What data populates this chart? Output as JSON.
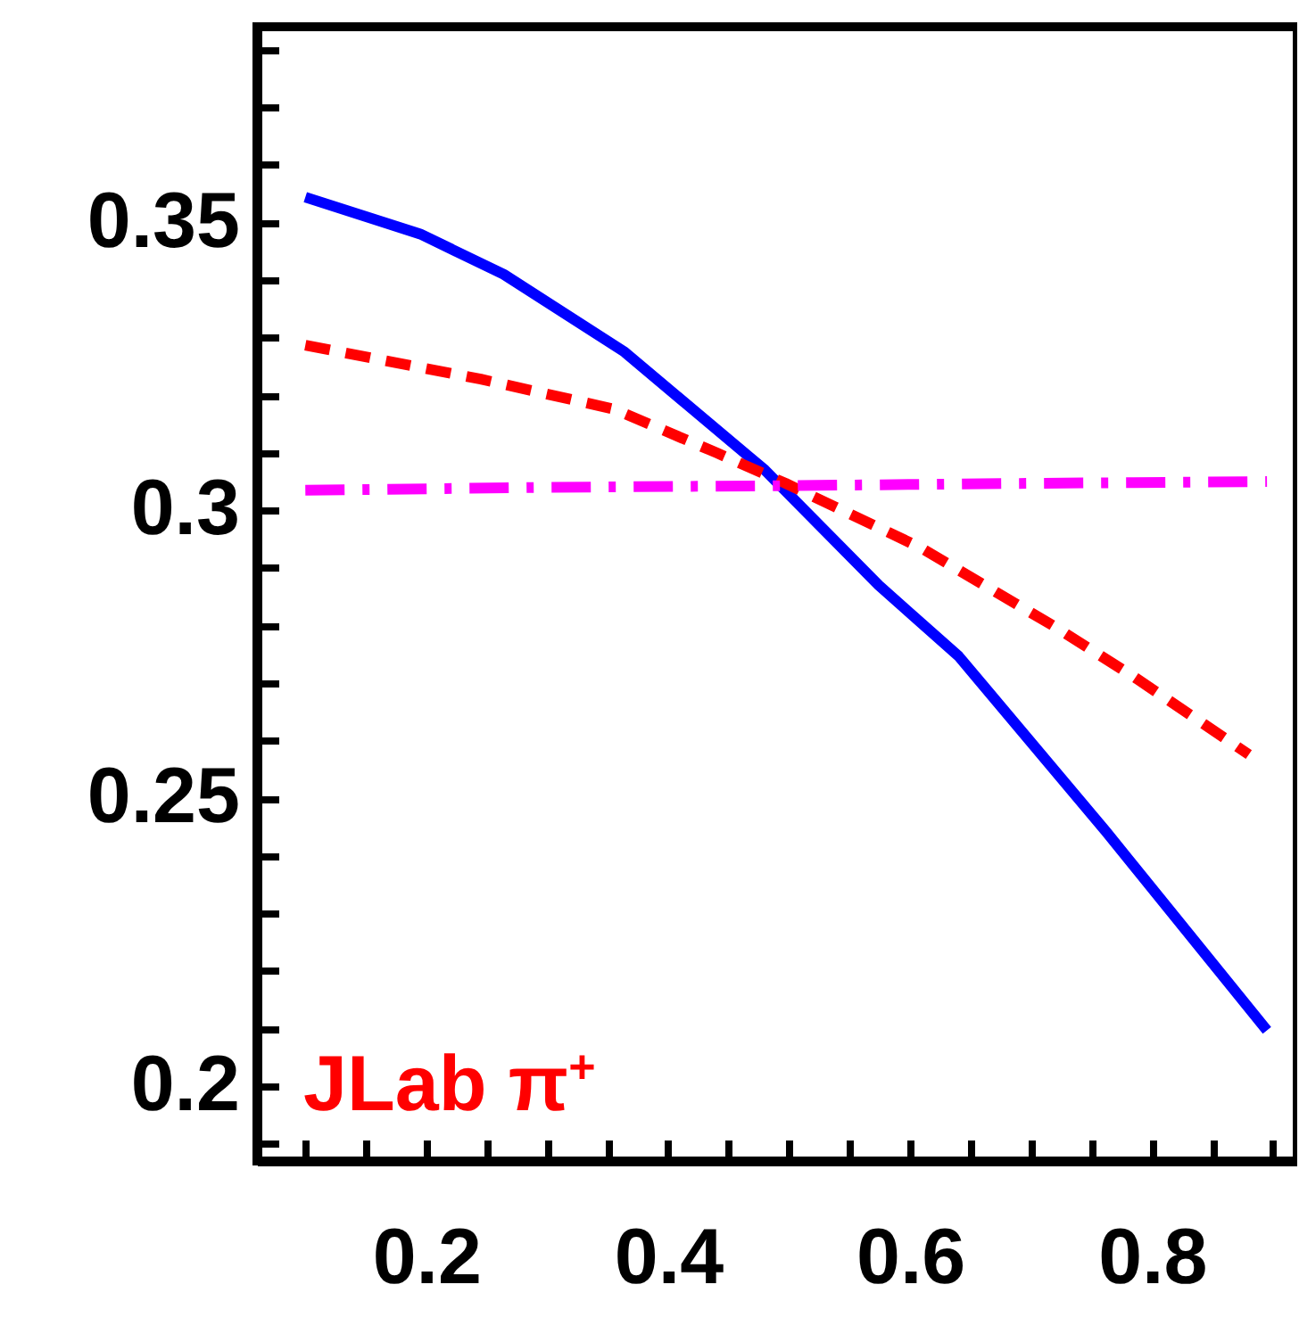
{
  "chart_data": {
    "type": "line",
    "annotations": [
      "JLab π$^{+}$"
    ],
    "xlim": [
      0.06,
      0.92
    ],
    "ylim": [
      0.187,
      0.384
    ],
    "xticks": [
      {
        "value": 0.1,
        "label": null
      },
      {
        "value": 0.15,
        "label": null
      },
      0.2,
      {
        "value": 0.25,
        "label": null
      },
      {
        "value": 0.3,
        "label": null
      },
      {
        "value": 0.35,
        "label": null
      },
      0.4,
      {
        "value": 0.45,
        "label": null
      },
      {
        "value": 0.5,
        "label": null
      },
      {
        "value": 0.55,
        "label": null
      },
      0.6,
      {
        "value": 0.65,
        "label": null
      },
      {
        "value": 0.7,
        "label": null
      },
      {
        "value": 0.75,
        "label": null
      },
      0.8,
      {
        "value": 0.85,
        "label": null
      },
      {
        "value": 0.9,
        "label": null
      }
    ],
    "yticks": [
      {
        "value": 0.19,
        "label": null
      },
      0.2,
      {
        "value": 0.21,
        "label": null
      },
      {
        "value": 0.22,
        "label": null
      },
      {
        "value": 0.23,
        "label": null
      },
      {
        "value": 0.24,
        "label": null
      },
      0.25,
      {
        "value": 0.26,
        "label": null
      },
      {
        "value": 0.27,
        "label": null
      },
      {
        "value": 0.28,
        "label": null
      },
      {
        "value": 0.29,
        "label": null
      },
      0.3,
      {
        "value": 0.31,
        "label": null
      },
      {
        "value": 0.32,
        "label": null
      },
      {
        "value": 0.33,
        "label": null
      },
      {
        "value": 0.34,
        "label": null
      },
      0.35,
      {
        "value": 0.36,
        "label": null
      },
      {
        "value": 0.37,
        "label": null
      },
      {
        "value": 0.38,
        "label": null
      }
    ],
    "series": [
      {
        "color": "#0000ff",
        "line_style": "solid",
        "x": [
          0.1,
          0.195,
          0.264,
          0.364,
          0.48,
          0.574,
          0.64,
          0.762,
          0.895
        ],
        "values": [
          0.3544,
          0.348,
          0.341,
          0.3275,
          0.307,
          0.287,
          0.2747,
          0.2442,
          0.2097
        ]
      },
      {
        "color": "#ff0000",
        "line_style": "dashed",
        "x": [
          0.1,
          0.245,
          0.355,
          0.44,
          0.497,
          0.608,
          0.718,
          0.785,
          0.88
        ],
        "values": [
          0.3287,
          0.3228,
          0.3176,
          0.31,
          0.3047,
          0.2936,
          0.28,
          0.2711,
          0.2576
        ]
      },
      {
        "color": "#ff00ff",
        "line_style": "dashdot",
        "x": [
          0.1,
          0.3,
          0.5,
          0.7,
          0.895
        ],
        "values": [
          0.3035,
          0.304,
          0.3043,
          0.3047,
          0.305
        ]
      }
    ]
  }
}
